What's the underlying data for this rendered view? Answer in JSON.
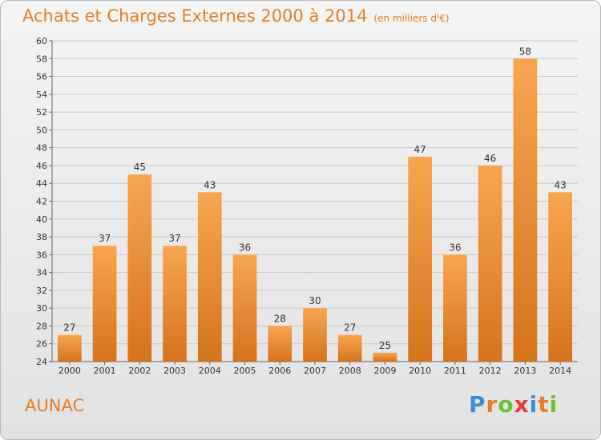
{
  "title": "Achats et Charges Externes 2000 à 2014",
  "unit": "(en milliers d'€)",
  "town": "AUNAC",
  "logo": {
    "letters": [
      "P",
      "r",
      "o",
      "x",
      "i",
      "t",
      "i"
    ],
    "colors": [
      "#3a8fd6",
      "#e87d26",
      "#6bbf3a",
      "#e53935",
      "#3a8fd6",
      "#e87d26",
      "#6bbf3a"
    ]
  },
  "chart_data": {
    "type": "bar",
    "title": "Achats et Charges Externes 2000 à 2014",
    "categories": [
      "2000",
      "2001",
      "2002",
      "2003",
      "2004",
      "2005",
      "2006",
      "2007",
      "2008",
      "2009",
      "2010",
      "2011",
      "2012",
      "2013",
      "2014"
    ],
    "values": [
      27,
      37,
      45,
      37,
      43,
      36,
      28,
      30,
      27,
      25,
      47,
      36,
      46,
      58,
      43
    ],
    "ylim": [
      24,
      60
    ],
    "yticks": [
      24,
      26,
      28,
      30,
      32,
      34,
      36,
      38,
      40,
      42,
      44,
      46,
      48,
      50,
      52,
      54,
      56,
      58,
      60
    ],
    "grid": true,
    "bar_color_light": "#f7a650",
    "bar_color_dark": "#d6731c"
  }
}
